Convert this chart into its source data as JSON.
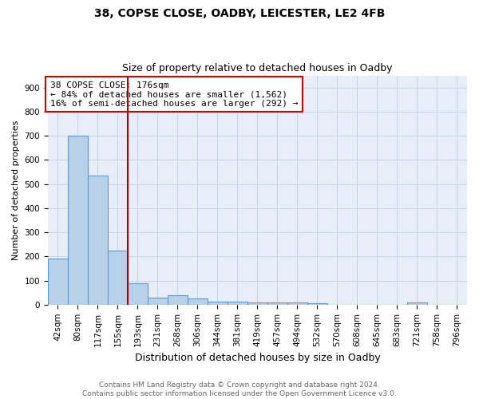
{
  "title1": "38, COPSE CLOSE, OADBY, LEICESTER, LE2 4FB",
  "title2": "Size of property relative to detached houses in Oadby",
  "xlabel": "Distribution of detached houses by size in Oadby",
  "ylabel": "Number of detached properties",
  "categories": [
    "42sqm",
    "80sqm",
    "117sqm",
    "155sqm",
    "193sqm",
    "231sqm",
    "268sqm",
    "306sqm",
    "344sqm",
    "381sqm",
    "419sqm",
    "457sqm",
    "494sqm",
    "532sqm",
    "570sqm",
    "608sqm",
    "645sqm",
    "683sqm",
    "721sqm",
    "758sqm",
    "796sqm"
  ],
  "values": [
    190,
    700,
    535,
    225,
    90,
    30,
    40,
    25,
    12,
    12,
    10,
    8,
    8,
    5,
    0,
    0,
    0,
    0,
    10,
    0,
    0
  ],
  "bar_color": "#b8d0ea",
  "bar_edgecolor": "#5b9bd5",
  "bar_linewidth": 0.8,
  "vline_color": "#aa0000",
  "vline_linewidth": 1.5,
  "annotation_line1": "38 COPSE CLOSE: 176sqm",
  "annotation_line2": "← 84% of detached houses are smaller (1,562)",
  "annotation_line3": "16% of semi-detached houses are larger (292) →",
  "annotation_boxcolor": "white",
  "annotation_edgecolor": "#cc0000",
  "ylim": [
    0,
    950
  ],
  "yticks": [
    0,
    100,
    200,
    300,
    400,
    500,
    600,
    700,
    800,
    900
  ],
  "grid_color": "#c8d4e8",
  "background_color": "#e8eef8",
  "footnote": "Contains HM Land Registry data © Crown copyright and database right 2024.\nContains public sector information licensed under the Open Government Licence v3.0.",
  "title1_fontsize": 10,
  "title2_fontsize": 9,
  "xlabel_fontsize": 9,
  "ylabel_fontsize": 8,
  "tick_fontsize": 7.5,
  "annotation_fontsize": 8,
  "footnote_fontsize": 6.5
}
